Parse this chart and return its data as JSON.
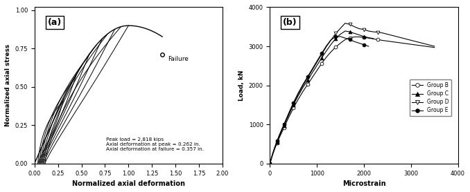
{
  "panel_a": {
    "title": "(a)",
    "xlabel": "Normalized axial deformation",
    "ylabel": "Normalized axial stress",
    "xlim": [
      0,
      2
    ],
    "ylim": [
      0,
      1.02
    ],
    "xticks": [
      0,
      0.25,
      0.5,
      0.75,
      1.0,
      1.25,
      1.5,
      1.75,
      2.0
    ],
    "yticks": [
      0,
      0.25,
      0.5,
      0.75,
      1.0
    ],
    "annotation": "Peak load = 2,818 kips\nAxial deformation at peak = 0.262 in.\nAxial deformation at failure = 0.357 in.",
    "failure_label": "Failure",
    "failure_x": 1.36,
    "failure_y": 0.71,
    "peak_y": 0.9,
    "num_loops": 6,
    "loop_unload_fractions": [
      0.3,
      0.42,
      0.54,
      0.66,
      0.78,
      0.9
    ],
    "loop_reload_offsets": [
      0.02,
      0.03,
      0.04,
      0.05,
      0.06,
      0.07
    ]
  },
  "panel_b": {
    "title": "(b)",
    "xlabel": "Microstrain",
    "ylabel": "Load, kN",
    "xlim": [
      0,
      4000
    ],
    "ylim": [
      0,
      4000
    ],
    "xticks": [
      0,
      1000,
      2000,
      3000,
      4000
    ],
    "yticks": [
      0,
      1000,
      2000,
      3000,
      4000
    ],
    "group_B_x": [
      0,
      50,
      100,
      150,
      200,
      250,
      300,
      350,
      400,
      500,
      600,
      700,
      800,
      900,
      1000,
      1100,
      1200,
      1300,
      1400,
      1500,
      1600,
      1700,
      1800,
      1900,
      2000,
      2100,
      2200,
      2300,
      2400,
      3500
    ],
    "group_B_y": [
      0,
      200,
      370,
      520,
      660,
      790,
      920,
      1050,
      1180,
      1420,
      1640,
      1840,
      2020,
      2200,
      2380,
      2560,
      2720,
      2860,
      2980,
      3080,
      3170,
      3220,
      3240,
      3240,
      3230,
      3210,
      3190,
      3170,
      3150,
      2970
    ],
    "group_C_x": [
      0,
      50,
      100,
      150,
      200,
      250,
      300,
      350,
      400,
      500,
      600,
      700,
      800,
      900,
      1000,
      1100,
      1200,
      1300,
      1400,
      1500,
      1600,
      1700,
      1800,
      1900,
      2000,
      2100,
      2200
    ],
    "group_C_y": [
      0,
      210,
      390,
      550,
      700,
      840,
      970,
      1110,
      1240,
      1500,
      1730,
      1940,
      2130,
      2320,
      2510,
      2700,
      2880,
      3050,
      3200,
      3310,
      3390,
      3370,
      3330,
      3290,
      3250,
      3220,
      3200
    ],
    "group_D_x": [
      0,
      50,
      100,
      150,
      200,
      250,
      300,
      350,
      400,
      500,
      600,
      700,
      800,
      900,
      1000,
      1100,
      1200,
      1300,
      1400,
      1500,
      1600,
      1700,
      1800,
      1900,
      2000,
      2100,
      2200,
      2300,
      2400,
      3500
    ],
    "group_D_y": [
      0,
      215,
      400,
      565,
      715,
      860,
      990,
      1130,
      1270,
      1530,
      1770,
      1990,
      2190,
      2390,
      2590,
      2790,
      2990,
      3160,
      3330,
      3460,
      3590,
      3560,
      3500,
      3450,
      3430,
      3390,
      3370,
      3360,
      3340,
      3000
    ],
    "group_E_x": [
      0,
      50,
      100,
      150,
      200,
      250,
      300,
      350,
      400,
      500,
      600,
      700,
      800,
      900,
      1000,
      1100,
      1200,
      1300,
      1400,
      1500,
      1600,
      1700,
      1800,
      1900,
      2000,
      2100
    ],
    "group_E_y": [
      0,
      220,
      410,
      575,
      730,
      870,
      1010,
      1150,
      1290,
      1560,
      1800,
      2020,
      2220,
      2420,
      2620,
      2820,
      3010,
      3170,
      3240,
      3250,
      3210,
      3170,
      3120,
      3080,
      3040,
      3000
    ]
  }
}
